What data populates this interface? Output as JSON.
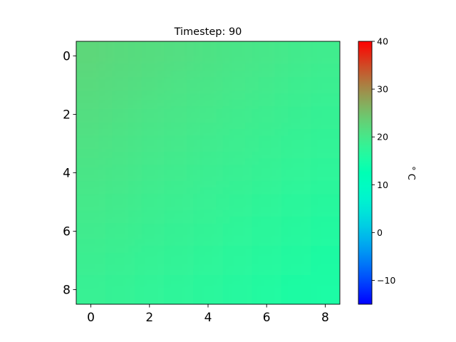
{
  "chart_data": {
    "type": "heatmap",
    "title": "Timestep: 90",
    "xlabel": "",
    "ylabel": "",
    "x_ticks": [
      0,
      2,
      4,
      6,
      8
    ],
    "y_ticks": [
      0,
      2,
      4,
      6,
      8
    ],
    "xlim": [
      -0.5,
      8.5
    ],
    "ylim": [
      8.5,
      -0.5
    ],
    "grid": false,
    "colorbar": {
      "label": "° C",
      "range": [
        -15,
        40
      ],
      "ticks": [
        -10,
        0,
        10,
        20,
        30,
        40
      ],
      "colormap": "rainbow"
    },
    "values": [
      [
        22.5,
        22.1,
        21.7,
        21.3,
        20.9,
        20.5,
        20.1,
        19.7,
        19.3
      ],
      [
        22.0,
        21.6,
        21.2,
        20.8,
        20.4,
        20.0,
        19.6,
        19.2,
        18.8
      ],
      [
        21.5,
        21.1,
        20.7,
        20.3,
        19.9,
        19.5,
        19.1,
        18.7,
        18.3
      ],
      [
        21.0,
        20.6,
        20.2,
        19.8,
        19.4,
        19.0,
        18.6,
        18.2,
        17.8
      ],
      [
        20.4,
        20.1,
        19.7,
        19.3,
        18.9,
        18.5,
        18.1,
        17.7,
        17.3
      ],
      [
        19.9,
        19.6,
        19.2,
        18.8,
        18.4,
        18.0,
        17.6,
        17.2,
        16.8
      ],
      [
        19.4,
        19.1,
        18.7,
        18.3,
        17.9,
        17.5,
        17.1,
        16.7,
        16.3
      ],
      [
        18.9,
        18.6,
        18.2,
        17.8,
        17.4,
        17.0,
        16.6,
        16.2,
        15.8
      ],
      [
        18.4,
        18.1,
        17.7,
        17.3,
        16.9,
        16.5,
        16.1,
        15.7,
        15.3
      ]
    ]
  }
}
